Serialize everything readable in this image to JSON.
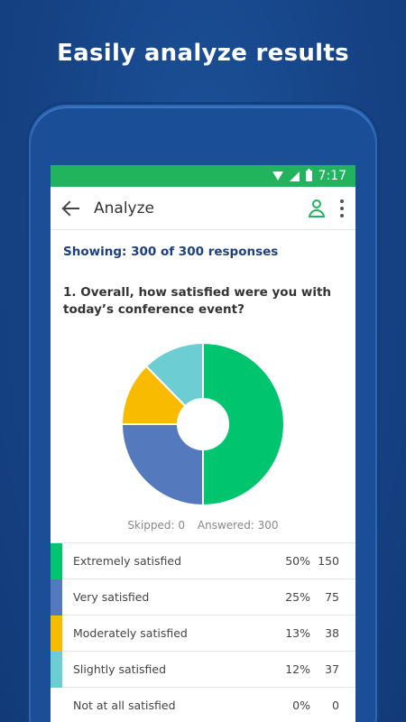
{
  "headline": "Easily analyze results",
  "status_bar": {
    "time": "7:17",
    "icons": [
      "wifi-icon",
      "signal-icon",
      "battery-icon"
    ]
  },
  "app_bar": {
    "title": "Analyze",
    "icons": [
      "back-arrow-icon",
      "person-icon",
      "more-vert-icon"
    ]
  },
  "showing_text": "Showing: 300 of 300 responses",
  "question": "1. Overall, how satisfied were you with today’s conference event?",
  "summary": {
    "skipped": "Skipped: 0",
    "answered": "Answered: 300"
  },
  "colors": {
    "brand_green": "#21b35d",
    "background_blue": "#17468a"
  },
  "chart_data": {
    "type": "pie",
    "donut": true,
    "title": "",
    "categories": [
      "Extremely satisfied",
      "Very satisfied",
      "Moderately satisfied",
      "Slightly satisfied",
      "Not at all satisfied"
    ],
    "values": [
      150,
      75,
      38,
      37,
      0
    ],
    "colors": [
      "#00c46e",
      "#5479bd",
      "#f8bb00",
      "#6ccdd2",
      "#d0d0d0"
    ]
  },
  "table": {
    "rows": [
      {
        "label": "Extremely satisfied",
        "percent": "50%",
        "count": "150",
        "color": "#00c46e"
      },
      {
        "label": "Very satisfied",
        "percent": "25%",
        "count": "75",
        "color": "#5479bd"
      },
      {
        "label": "Moderately satisfied",
        "percent": "13%",
        "count": "38",
        "color": "#f8bb00"
      },
      {
        "label": "Slightly satisfied",
        "percent": "12%",
        "count": "37",
        "color": "#6ccdd2"
      },
      {
        "label": "Not at all satisfied",
        "percent": "0%",
        "count": "0",
        "color": "#ffffff"
      }
    ]
  }
}
